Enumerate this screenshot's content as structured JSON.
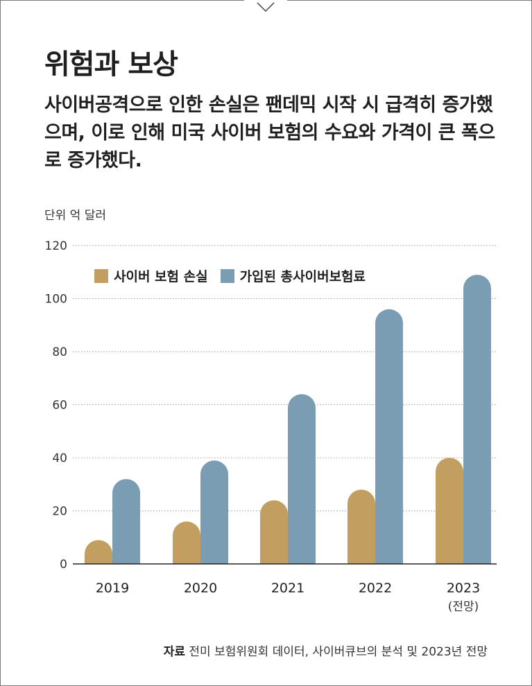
{
  "title": "위험과 보상",
  "subtitle": "사이버공격으로 인한 손실은 팬데믹 시작 시 급격히 증가했으며, 이로 인해 미국 사이버 보험의 수요와 가격이 큰 폭으로 증가했다.",
  "unit_label": "단위 억 달러",
  "source": {
    "label": "자료",
    "text": "전미 보험위원회 데이터, 사이버큐브의 분석 및 2023년 전망"
  },
  "colors": {
    "loss": "#c29f61",
    "premium": "#7a9db3",
    "grid": "#9a9a9a",
    "text": "#1f1f1f"
  },
  "chart_data": {
    "type": "bar",
    "categories": [
      "2019",
      "2020",
      "2021",
      "2022",
      "2023"
    ],
    "category_notes": [
      "",
      "",
      "",
      "",
      "(전망)"
    ],
    "series": [
      {
        "name": "사이버 보험 손실",
        "values": [
          9,
          16,
          24,
          28,
          40
        ]
      },
      {
        "name": "가입된 총사이버보험료",
        "values": [
          32,
          39,
          64,
          96,
          109
        ]
      }
    ],
    "yticks": [
      0,
      20,
      40,
      60,
      80,
      100,
      120
    ],
    "ylim": [
      0,
      120
    ],
    "grid": true,
    "legend_position": "top-left"
  }
}
